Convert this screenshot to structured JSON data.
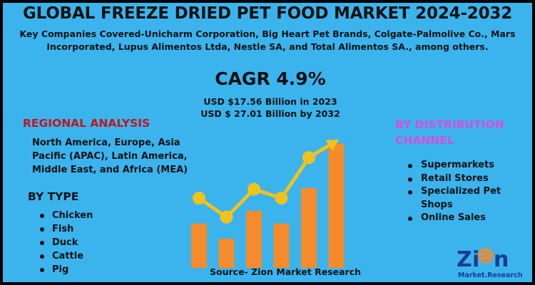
{
  "title": "GLOBAL FREEZE DRIED PET FOOD MARKET 2024-2032",
  "subtitle": "Key Companies Covered-Unicharm Corporation, Big Heart Pet Brands, Colgate-Palmolive Co., Mars Incorporated, Lupus Alimentos Ltda, Nestle SA, and Total Alimentos SA., among others.",
  "cagr": "CAGR 4.9%",
  "market_2023": "USD $17.56 Billion in 2023",
  "market_2032": "USD $ 27.01 Billion by 2032",
  "regional": {
    "heading": "REGIONAL ANALYSIS",
    "text": "North America, Europe, Asia Pacific (APAC), Latin America, Middle East, and Africa (MEA)"
  },
  "by_type": {
    "heading": "BY TYPE",
    "items": [
      "Chicken",
      "Fish",
      "Duck",
      "Cattle",
      "Pig"
    ]
  },
  "distribution": {
    "heading": "BY DISTRIBUTION CHANNEL",
    "items": [
      "Supermarkets",
      "Retail Stores",
      "Specialized Pet Shops",
      "Online Sales"
    ]
  },
  "source": "Source- Zion Market Research",
  "logo": {
    "name": "Zion",
    "tagline": "Market.Research"
  },
  "colors": {
    "background": "#3bb4ee",
    "bar": "#f58b2a",
    "line": "#f2c21b",
    "regional_heading": "#c0161c",
    "distribution_heading": "#d84ce0"
  },
  "chart_data": {
    "type": "bar",
    "categories": [
      "",
      "",
      "",
      "",
      "",
      ""
    ],
    "values": [
      35,
      23,
      45,
      35,
      63,
      98
    ],
    "series": [
      {
        "type": "bar",
        "values": [
          35,
          23,
          45,
          35,
          63,
          98
        ]
      },
      {
        "type": "line",
        "values": [
          55,
          40,
          62,
          55,
          87,
          100
        ]
      }
    ],
    "title": "",
    "xlabel": "",
    "ylabel": "",
    "ylim": [
      0,
      100
    ],
    "grid": false,
    "legend": "none"
  }
}
